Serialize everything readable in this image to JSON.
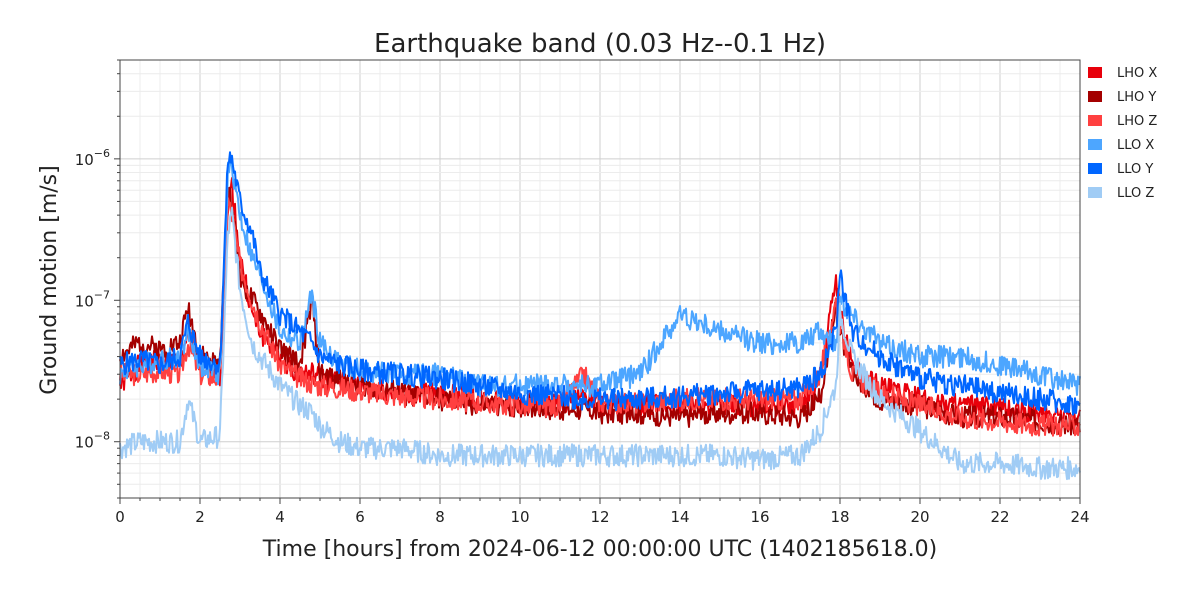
{
  "chart_data": {
    "type": "line",
    "title": "Earthquake band (0.03 Hz--0.1 Hz)",
    "xlabel": "Time [hours] from 2024-06-12 00:00:00 UTC (1402185618.0)",
    "ylabel": "Ground motion [m/s]",
    "xlim": [
      0,
      24
    ],
    "ylim": [
      4e-09,
      5e-06
    ],
    "yscale": "log",
    "grid": true,
    "legend_position": "right-outside-top",
    "x_ticks": [
      "0",
      "2",
      "4",
      "6",
      "8",
      "10",
      "12",
      "14",
      "16",
      "18",
      "20",
      "22",
      "24"
    ],
    "y_ticks": [
      {
        "base": "10",
        "exp": "−8",
        "value": 1e-08
      },
      {
        "base": "10",
        "exp": "−7",
        "value": 1e-07
      },
      {
        "base": "10",
        "exp": "−6",
        "value": 1e-06
      }
    ],
    "x": [
      0,
      0.5,
      1,
      1.5,
      1.7,
      2,
      2.5,
      2.7,
      2.8,
      3,
      3.3,
      3.5,
      4,
      4.5,
      4.8,
      5,
      5.5,
      6,
      7,
      8,
      9,
      10,
      11,
      11.6,
      12,
      13,
      14,
      15,
      16,
      17,
      17.5,
      17.9,
      18,
      18.3,
      19,
      20,
      21,
      22,
      23,
      24
    ],
    "series": [
      {
        "name": "LHO X",
        "color": "#e8000b",
        "values": [
          2.5e-08,
          3.5e-08,
          3.8e-08,
          3.6e-08,
          6e-08,
          3.5e-08,
          3e-08,
          5e-07,
          6.5e-07,
          2e-07,
          8e-08,
          6e-08,
          4e-08,
          3e-08,
          3e-08,
          2.8e-08,
          2.6e-08,
          2.5e-08,
          2.2e-08,
          2.2e-08,
          2e-08,
          1.9e-08,
          1.8e-08,
          2.2e-08,
          1.8e-08,
          1.8e-08,
          1.8e-08,
          1.8e-08,
          1.8e-08,
          1.8e-08,
          2.5e-08,
          1.5e-07,
          8e-08,
          3.5e-08,
          2.5e-08,
          2e-08,
          1.8e-08,
          1.7e-08,
          1.6e-08,
          1.5e-08
        ]
      },
      {
        "name": "LHO Y",
        "color": "#a40000",
        "values": [
          4e-08,
          5e-08,
          4.5e-08,
          5e-08,
          9e-08,
          4e-08,
          3.5e-08,
          6.5e-07,
          5e-07,
          1.5e-07,
          1e-07,
          8e-08,
          4.5e-08,
          3.5e-08,
          1e-07,
          3e-08,
          2.8e-08,
          2.5e-08,
          2.2e-08,
          2e-08,
          1.8e-08,
          1.8e-08,
          1.7e-08,
          1.7e-08,
          1.6e-08,
          1.6e-08,
          1.5e-08,
          1.6e-08,
          1.6e-08,
          1.5e-08,
          2e-08,
          9e-08,
          6e-08,
          3e-08,
          2e-08,
          1.8e-08,
          1.5e-08,
          1.5e-08,
          1.4e-08,
          1.3e-08
        ]
      },
      {
        "name": "LHO Z",
        "color": "#ff4040",
        "values": [
          3e-08,
          3e-08,
          3.2e-08,
          3e-08,
          5e-08,
          3e-08,
          2.8e-08,
          5e-07,
          4e-07,
          1.8e-07,
          1e-07,
          7e-08,
          3.5e-08,
          2.8e-08,
          2.6e-08,
          2.5e-08,
          2.4e-08,
          2.3e-08,
          2.1e-08,
          2e-08,
          1.9e-08,
          1.8e-08,
          1.8e-08,
          3e-08,
          1.9e-08,
          1.9e-08,
          2e-08,
          2e-08,
          2e-08,
          2e-08,
          3e-08,
          1e-07,
          7e-08,
          3e-08,
          2.2e-08,
          1.8e-08,
          1.5e-08,
          1.4e-08,
          1.3e-08,
          1.3e-08
        ]
      },
      {
        "name": "LLO X",
        "color": "#4da6ff",
        "values": [
          3e-08,
          3.5e-08,
          3.8e-08,
          4e-08,
          6e-08,
          3.5e-08,
          3e-08,
          8e-07,
          9e-07,
          4e-07,
          2e-07,
          1.5e-07,
          6e-08,
          5e-08,
          1.1e-07,
          5e-08,
          3.5e-08,
          3.2e-08,
          3e-08,
          3e-08,
          2.5e-08,
          2.5e-08,
          2.5e-08,
          2.5e-08,
          2.5e-08,
          3e-08,
          8e-08,
          6e-08,
          5e-08,
          5e-08,
          6e-08,
          5e-08,
          1e-07,
          8e-08,
          5e-08,
          4e-08,
          4e-08,
          3.5e-08,
          3e-08,
          2.5e-08
        ]
      },
      {
        "name": "LLO Y",
        "color": "#0066ff",
        "values": [
          3.5e-08,
          3.8e-08,
          3.5e-08,
          4e-08,
          7e-08,
          4e-08,
          3.5e-08,
          1e-06,
          1e-06,
          5e-07,
          3e-07,
          1.6e-07,
          8e-08,
          6e-08,
          5e-08,
          4e-08,
          3.5e-08,
          3.2e-08,
          3e-08,
          2.8e-08,
          2.5e-08,
          2.2e-08,
          2.1e-08,
          2e-08,
          2e-08,
          2e-08,
          2.1e-08,
          2.2e-08,
          2.3e-08,
          2.4e-08,
          3e-08,
          6e-08,
          1.6e-07,
          6e-08,
          4e-08,
          2.8e-08,
          2.5e-08,
          2.2e-08,
          2e-08,
          1.8e-08
        ]
      },
      {
        "name": "LLO Z",
        "color": "#a0ccf5",
        "values": [
          9e-09,
          1e-08,
          1e-08,
          1e-08,
          2e-08,
          1e-08,
          1.1e-08,
          3e-07,
          4e-07,
          1.2e-07,
          5e-08,
          4e-08,
          2.5e-08,
          1.8e-08,
          1.6e-08,
          1.3e-08,
          1e-08,
          9e-09,
          9e-09,
          8e-09,
          8e-09,
          8e-09,
          8e-09,
          8e-09,
          8e-09,
          8e-09,
          8e-09,
          8e-09,
          7.5e-09,
          8e-09,
          1.2e-08,
          2.5e-08,
          8e-08,
          4e-08,
          2e-08,
          1.2e-08,
          7e-09,
          7e-09,
          6.5e-09,
          6.5e-09
        ]
      }
    ]
  }
}
